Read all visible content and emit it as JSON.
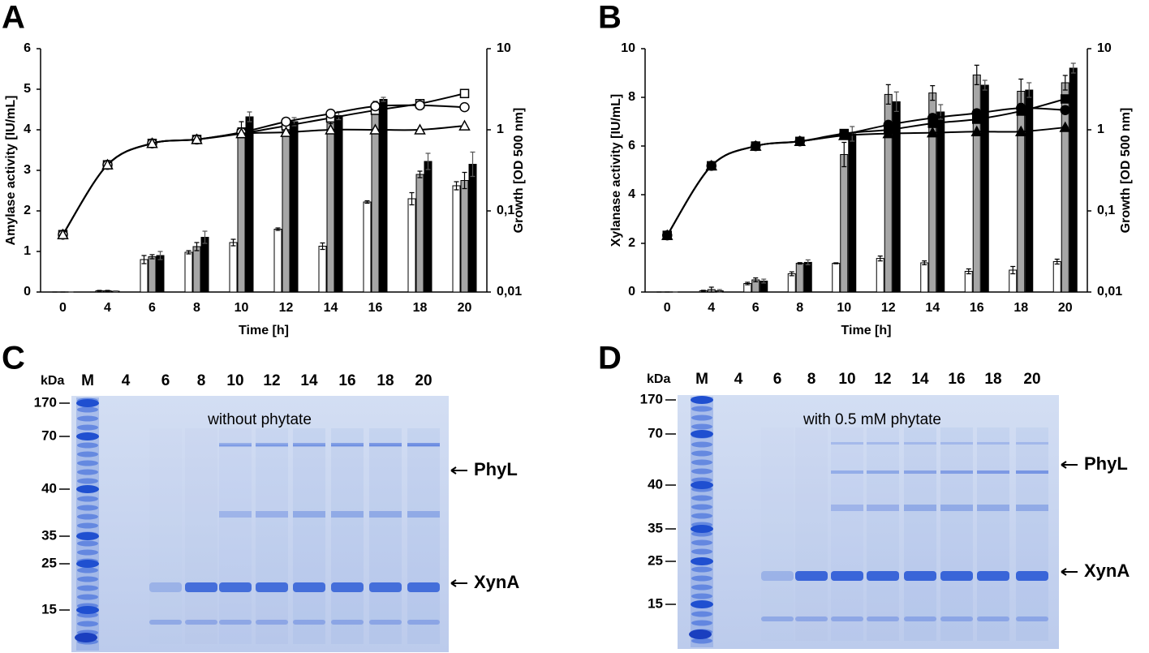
{
  "chart_data": [
    {
      "type": "bar",
      "label": "A",
      "ylabel": "Amylase activity [IU/mL]",
      "y2label": "Growth [OD 500 nm]",
      "xlabel": "Time [h]",
      "categories": [
        "0",
        "4",
        "6",
        "8",
        "10",
        "12",
        "14",
        "16",
        "18",
        "20"
      ],
      "ylim": [
        0,
        6
      ],
      "yticks": [
        0,
        1,
        2,
        3,
        4,
        5,
        6
      ],
      "y2lim": [
        0.01,
        10
      ],
      "y2log": true,
      "y2ticks": [
        {
          "value": 0.01,
          "label": "0,01"
        },
        {
          "value": 0.1,
          "label": "0,1"
        },
        1,
        10
      ],
      "series": [
        {
          "color": "#ffffff",
          "values": [
            0,
            0.03,
            0.8,
            0.98,
            1.22,
            1.55,
            1.13,
            2.22,
            2.3,
            2.62
          ],
          "errors": [
            0,
            0.01,
            0.1,
            0.04,
            0.08,
            0.03,
            0.08,
            0.03,
            0.15,
            0.1
          ]
        },
        {
          "color": "#a6a6a6",
          "values": [
            0,
            0.03,
            0.87,
            1.12,
            4.05,
            4.15,
            4.25,
            4.62,
            2.9,
            2.75
          ],
          "errors": [
            0,
            0.01,
            0.05,
            0.1,
            0.15,
            0.1,
            0.1,
            0.08,
            0.08,
            0.2
          ]
        },
        {
          "color": "#000000",
          "values": [
            0,
            0.02,
            0.9,
            1.35,
            4.32,
            4.2,
            4.35,
            4.75,
            3.22,
            3.15
          ],
          "errors": [
            0,
            0.01,
            0.1,
            0.15,
            0.12,
            0.1,
            0.1,
            0.05,
            0.2,
            0.3
          ]
        },
        {
          "type": "line",
          "axis": "y2",
          "color": "#000000",
          "marker": "square",
          "marker_fill": "#ffffff",
          "values": [
            0.051,
            0.37,
            0.68,
            0.76,
            0.9,
            1.12,
            1.4,
            1.74,
            2.1,
            2.8
          ]
        },
        {
          "type": "line",
          "axis": "y2",
          "color": "#000000",
          "marker": "circle",
          "marker_fill": "#ffffff",
          "values": [
            0.051,
            0.37,
            0.68,
            0.76,
            0.93,
            1.26,
            1.58,
            1.95,
            2.0,
            1.9
          ]
        },
        {
          "type": "line",
          "axis": "y2",
          "color": "#000000",
          "marker": "triangle",
          "marker_fill": "#ffffff",
          "values": [
            0.051,
            0.37,
            0.68,
            0.76,
            0.9,
            0.93,
            1.0,
            1.0,
            1.0,
            1.12
          ]
        }
      ]
    },
    {
      "type": "bar",
      "label": "B",
      "ylabel": "Xylanase activity [IU/mL]",
      "y2label": "Growth [OD 500 nm]",
      "xlabel": "Time [h]",
      "categories": [
        "0",
        "4",
        "6",
        "8",
        "10",
        "12",
        "14",
        "16",
        "18",
        "20"
      ],
      "ylim": [
        0,
        10
      ],
      "yticks": [
        0,
        2,
        4,
        6,
        8,
        10
      ],
      "y2lim": [
        0.01,
        10
      ],
      "y2log": true,
      "y2ticks": [
        {
          "value": 0.01,
          "label": "0,01"
        },
        {
          "value": 0.1,
          "label": "0,1"
        },
        1,
        10
      ],
      "series": [
        {
          "color": "#ffffff",
          "values": [
            0,
            0.05,
            0.35,
            0.75,
            1.18,
            1.38,
            1.2,
            0.85,
            0.9,
            1.25
          ],
          "errors": [
            0,
            0.02,
            0.05,
            0.08,
            0.02,
            0.1,
            0.08,
            0.1,
            0.15,
            0.1
          ]
        },
        {
          "color": "#a6a6a6",
          "values": [
            0,
            0.1,
            0.5,
            1.18,
            5.65,
            8.12,
            8.18,
            8.92,
            8.25,
            8.6
          ],
          "errors": [
            0,
            0.1,
            0.08,
            0.03,
            0.5,
            0.4,
            0.3,
            0.4,
            0.5,
            0.3
          ]
        },
        {
          "color": "#000000",
          "values": [
            0,
            0.05,
            0.45,
            1.22,
            6.5,
            7.82,
            7.4,
            8.5,
            8.3,
            9.2
          ],
          "errors": [
            0,
            0.05,
            0.08,
            0.1,
            0.3,
            0.4,
            0.3,
            0.2,
            0.3,
            0.2
          ]
        },
        {
          "type": "line",
          "axis": "y2",
          "color": "#000000",
          "marker": "square",
          "marker_fill": "#000000",
          "values": [
            0.05,
            0.36,
            0.63,
            0.72,
            0.9,
            1.0,
            1.2,
            1.35,
            1.7,
            2.4
          ]
        },
        {
          "type": "line",
          "axis": "y2",
          "color": "#000000",
          "marker": "circle",
          "marker_fill": "#000000",
          "values": [
            0.05,
            0.36,
            0.63,
            0.72,
            0.88,
            1.15,
            1.4,
            1.6,
            1.85,
            1.75
          ]
        },
        {
          "type": "line",
          "axis": "y2",
          "color": "#000000",
          "marker": "triangle",
          "marker_fill": "#000000",
          "values": [
            0.05,
            0.36,
            0.63,
            0.72,
            0.85,
            0.9,
            0.92,
            0.95,
            0.95,
            1.07
          ]
        }
      ]
    }
  ],
  "gels": [
    {
      "label": "C",
      "kda": "kDa",
      "lanes": [
        "M",
        "4",
        "6",
        "8",
        "10",
        "12",
        "14",
        "16",
        "18",
        "20"
      ],
      "markers": [
        "170",
        "70",
        "40",
        "35",
        "25",
        "15"
      ],
      "annotation": "without phytate",
      "arrows": [
        "PhyL",
        "XynA"
      ]
    },
    {
      "label": "D",
      "kda": "kDa",
      "lanes": [
        "M",
        "4",
        "6",
        "8",
        "10",
        "12",
        "14",
        "16",
        "18",
        "20"
      ],
      "markers": [
        "170",
        "70",
        "40",
        "35",
        "25",
        "15"
      ],
      "annotation": "with 0.5 mM phytate",
      "arrows": [
        "PhyL",
        "XynA"
      ]
    }
  ]
}
